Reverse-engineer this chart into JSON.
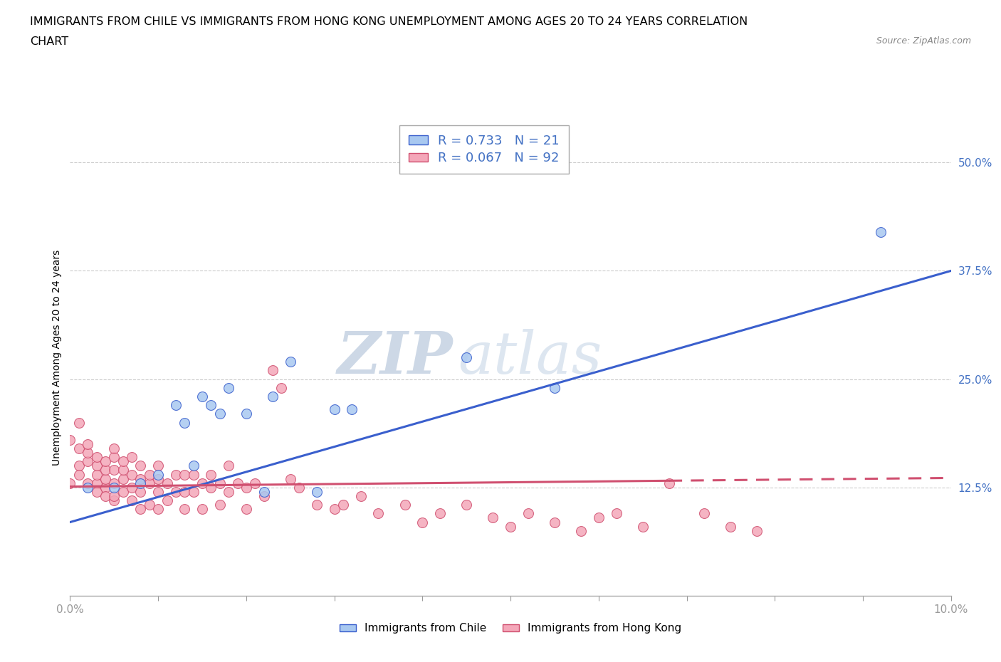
{
  "title_line1": "IMMIGRANTS FROM CHILE VS IMMIGRANTS FROM HONG KONG UNEMPLOYMENT AMONG AGES 20 TO 24 YEARS CORRELATION",
  "title_line2": "CHART",
  "source": "Source: ZipAtlas.com",
  "ylabel": "Unemployment Among Ages 20 to 24 years",
  "xlim": [
    0.0,
    0.1
  ],
  "ylim": [
    0.0,
    0.55
  ],
  "ytick_labels": [
    "12.5%",
    "25.0%",
    "37.5%",
    "50.0%"
  ],
  "ytick_positions": [
    0.125,
    0.25,
    0.375,
    0.5
  ],
  "r_chile": 0.733,
  "n_chile": 21,
  "r_hk": 0.067,
  "n_hk": 92,
  "color_chile": "#a8c8f0",
  "color_hk": "#f4a7b9",
  "color_chile_line": "#3a5fcd",
  "color_hk_line": "#d05070",
  "watermark_zip": "ZIP",
  "watermark_atlas": "atlas",
  "chile_scatter_x": [
    0.002,
    0.005,
    0.008,
    0.01,
    0.012,
    0.013,
    0.014,
    0.015,
    0.016,
    0.017,
    0.018,
    0.02,
    0.022,
    0.023,
    0.025,
    0.028,
    0.03,
    0.032,
    0.045,
    0.055,
    0.092
  ],
  "chile_scatter_y": [
    0.125,
    0.125,
    0.13,
    0.14,
    0.22,
    0.2,
    0.15,
    0.23,
    0.22,
    0.21,
    0.24,
    0.21,
    0.12,
    0.23,
    0.27,
    0.12,
    0.215,
    0.215,
    0.275,
    0.24,
    0.42
  ],
  "hk_scatter_x": [
    0.0,
    0.0,
    0.001,
    0.001,
    0.001,
    0.001,
    0.002,
    0.002,
    0.002,
    0.002,
    0.003,
    0.003,
    0.003,
    0.003,
    0.003,
    0.004,
    0.004,
    0.004,
    0.004,
    0.004,
    0.005,
    0.005,
    0.005,
    0.005,
    0.005,
    0.005,
    0.006,
    0.006,
    0.006,
    0.006,
    0.007,
    0.007,
    0.007,
    0.007,
    0.008,
    0.008,
    0.008,
    0.008,
    0.009,
    0.009,
    0.009,
    0.01,
    0.01,
    0.01,
    0.01,
    0.011,
    0.011,
    0.012,
    0.012,
    0.013,
    0.013,
    0.013,
    0.014,
    0.014,
    0.015,
    0.015,
    0.016,
    0.016,
    0.017,
    0.017,
    0.018,
    0.018,
    0.019,
    0.02,
    0.02,
    0.021,
    0.022,
    0.023,
    0.024,
    0.025,
    0.026,
    0.028,
    0.03,
    0.031,
    0.033,
    0.035,
    0.038,
    0.04,
    0.042,
    0.045,
    0.048,
    0.05,
    0.052,
    0.055,
    0.058,
    0.06,
    0.062,
    0.065,
    0.068,
    0.072,
    0.075,
    0.078
  ],
  "hk_scatter_y": [
    0.13,
    0.18,
    0.15,
    0.17,
    0.2,
    0.14,
    0.13,
    0.155,
    0.165,
    0.175,
    0.13,
    0.14,
    0.15,
    0.16,
    0.12,
    0.125,
    0.135,
    0.145,
    0.155,
    0.115,
    0.11,
    0.13,
    0.145,
    0.16,
    0.17,
    0.115,
    0.12,
    0.135,
    0.145,
    0.155,
    0.11,
    0.125,
    0.14,
    0.16,
    0.1,
    0.12,
    0.135,
    0.15,
    0.105,
    0.13,
    0.14,
    0.1,
    0.12,
    0.135,
    0.15,
    0.11,
    0.13,
    0.12,
    0.14,
    0.1,
    0.12,
    0.14,
    0.12,
    0.14,
    0.1,
    0.13,
    0.125,
    0.14,
    0.105,
    0.13,
    0.12,
    0.15,
    0.13,
    0.1,
    0.125,
    0.13,
    0.115,
    0.26,
    0.24,
    0.135,
    0.125,
    0.105,
    0.1,
    0.105,
    0.115,
    0.095,
    0.105,
    0.085,
    0.095,
    0.105,
    0.09,
    0.08,
    0.095,
    0.085,
    0.075,
    0.09,
    0.095,
    0.08,
    0.13,
    0.095,
    0.08,
    0.075
  ],
  "chile_line_x0": 0.0,
  "chile_line_y0": 0.085,
  "chile_line_x1": 0.1,
  "chile_line_y1": 0.375,
  "hk_line_x0": 0.0,
  "hk_line_y0": 0.126,
  "hk_line_x1": 0.1,
  "hk_line_y1": 0.136
}
